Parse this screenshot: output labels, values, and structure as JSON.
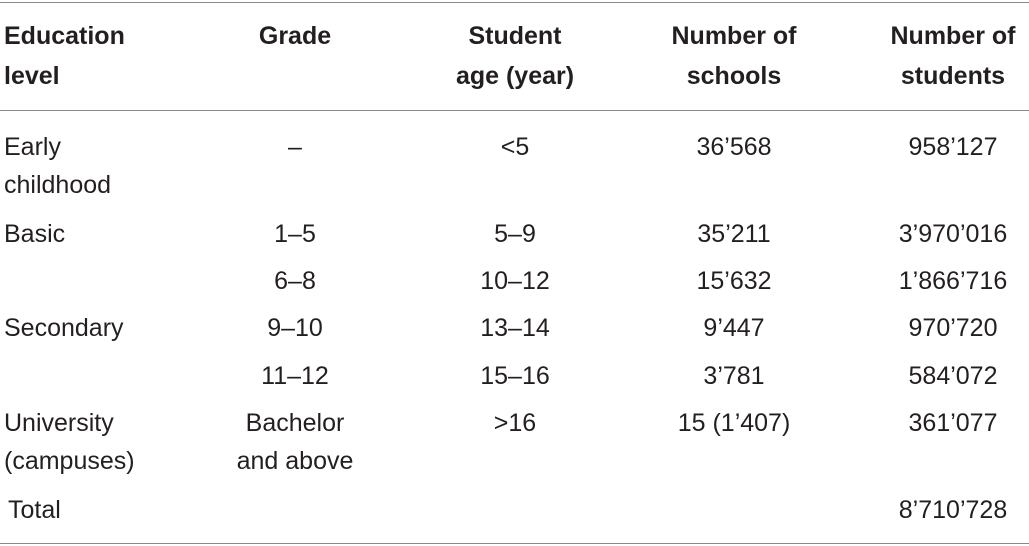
{
  "table": {
    "headers": [
      [
        "Education",
        "level"
      ],
      [
        "Grade"
      ],
      [
        "Student",
        "age (year)"
      ],
      [
        "Number of",
        "schools"
      ],
      [
        "Number of",
        "students"
      ]
    ],
    "rows": [
      {
        "level": [
          "Early",
          "childhood"
        ],
        "grade": [
          "–"
        ],
        "age": [
          "<5"
        ],
        "schools": "36’568",
        "students": "958’127"
      },
      {
        "level": [
          "Basic"
        ],
        "grade": [
          "1–5"
        ],
        "age": [
          "5–9"
        ],
        "schools": "35’211",
        "students": "3’970’016"
      },
      {
        "level": [
          ""
        ],
        "grade": [
          "6–8"
        ],
        "age": [
          "10–12"
        ],
        "schools": "15’632",
        "students": "1’866’716"
      },
      {
        "level": [
          "Secondary"
        ],
        "grade": [
          "9–10"
        ],
        "age": [
          "13–14"
        ],
        "schools": "9’447",
        "students": "970’720"
      },
      {
        "level": [
          ""
        ],
        "grade": [
          "11–12"
        ],
        "age": [
          "15–16"
        ],
        "schools": "3’781",
        "students": "584’072"
      },
      {
        "level": [
          "University",
          "(campuses)"
        ],
        "grade": [
          "Bachelor",
          "and above"
        ],
        "age": [
          ">16"
        ],
        "schools": "15 (1’407)",
        "students": "361’077"
      }
    ],
    "total": {
      "label": "Total",
      "students": "8’710’728"
    }
  }
}
